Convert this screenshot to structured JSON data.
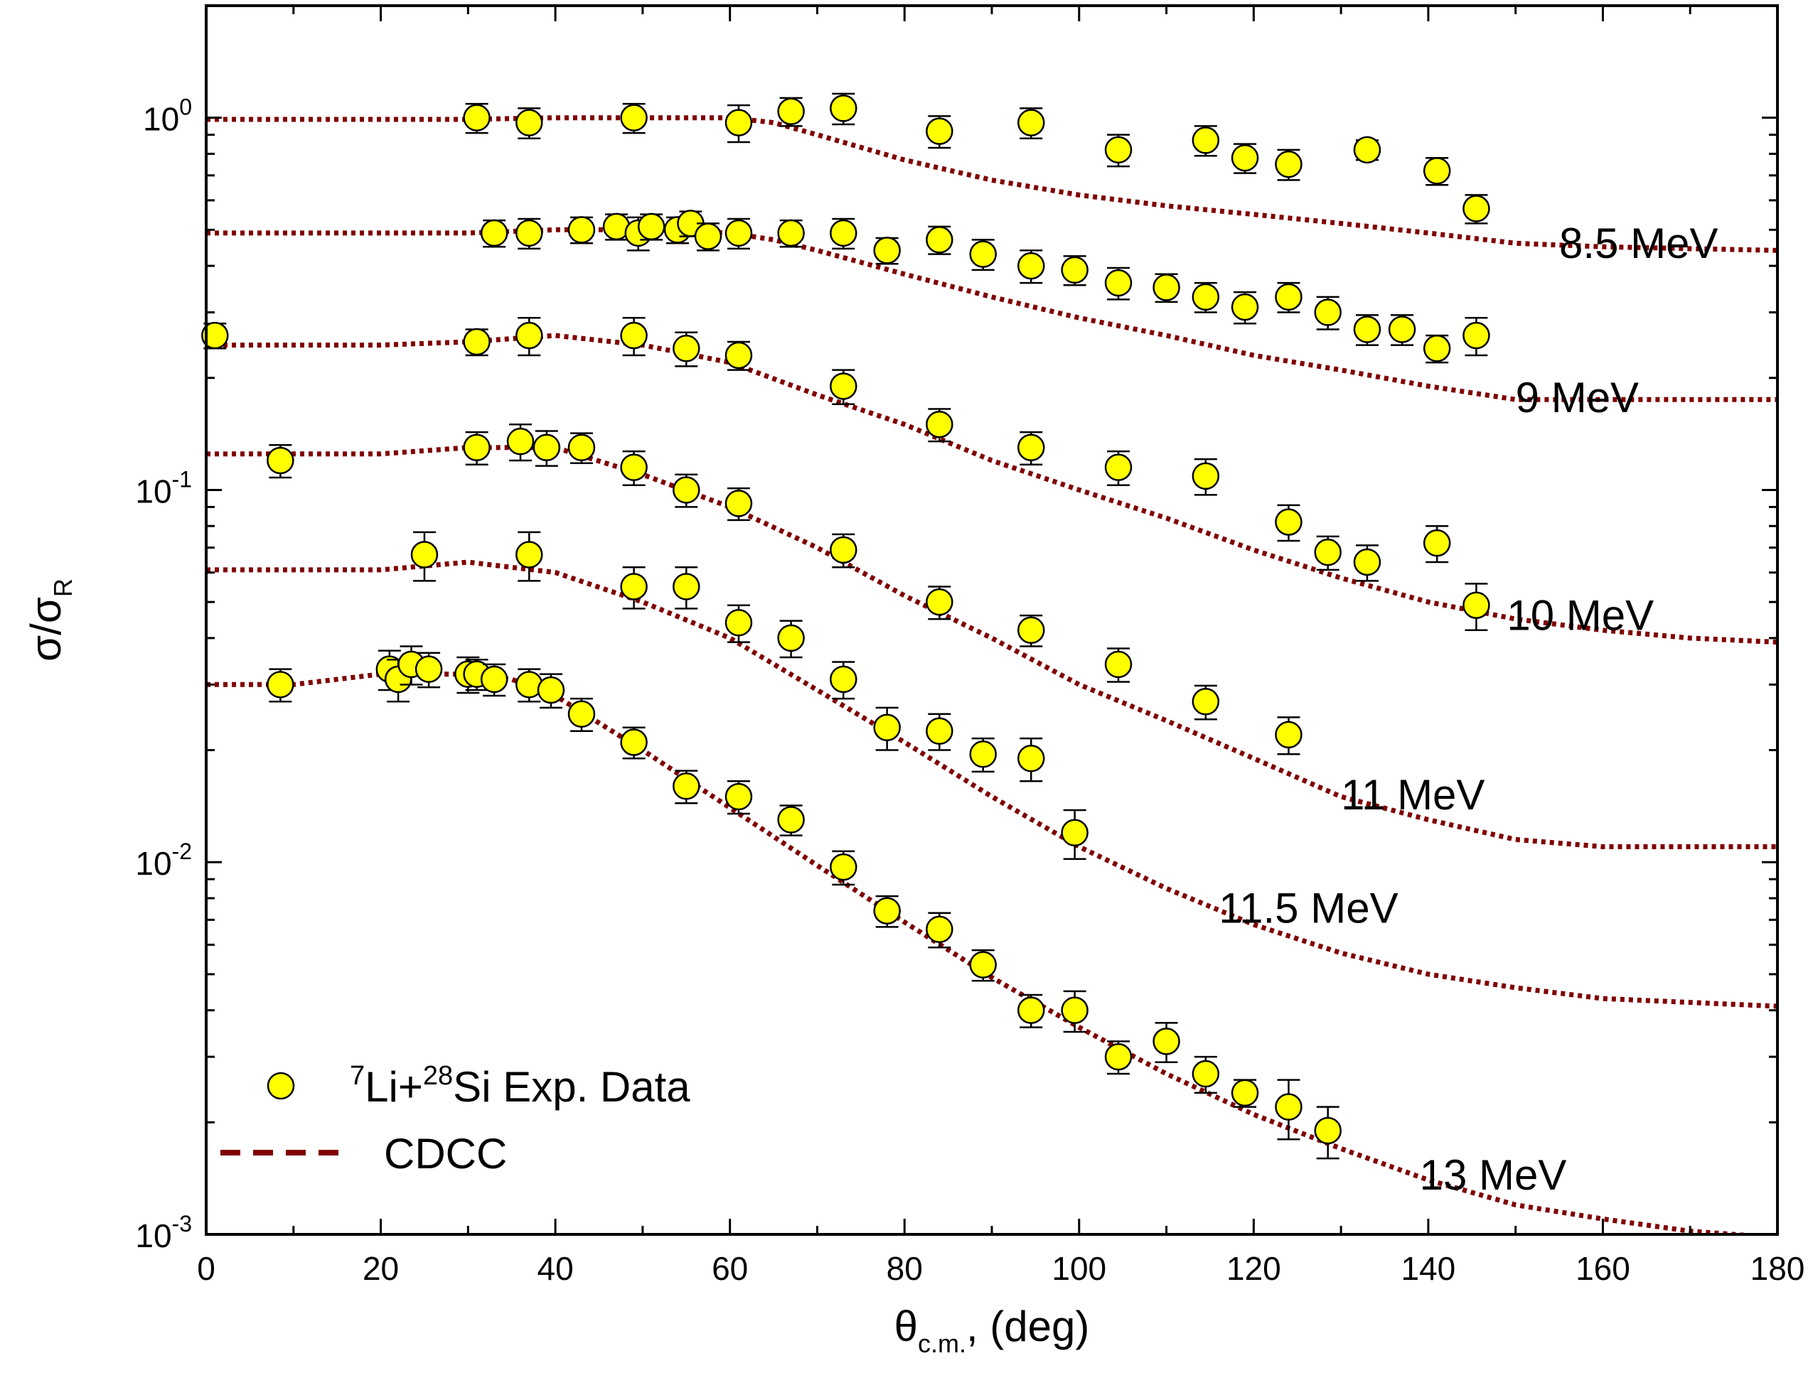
{
  "chart_data": {
    "type": "scatter",
    "xlabel": {
      "main": "θ",
      "sub": "c.m.",
      "rest": ", (deg)"
    },
    "ylabel": {
      "main": "σ/σ",
      "sub": "R"
    },
    "xlim": [
      0,
      180
    ],
    "ylim": [
      0.001,
      2
    ],
    "yscale": "log",
    "x_ticks": [
      0,
      20,
      40,
      60,
      80,
      100,
      120,
      140,
      160,
      180
    ],
    "x_tick_labels": [
      "0",
      "20",
      "40",
      "60",
      "80",
      "100",
      "120",
      "140",
      "160",
      "180"
    ],
    "y_ticks": [
      {
        "value": 1,
        "base": "10",
        "exp": "0"
      },
      {
        "value": 0.1,
        "base": "10",
        "exp": "-1"
      },
      {
        "value": 0.01,
        "base": "10",
        "exp": "-2"
      },
      {
        "value": 0.001,
        "base": "10",
        "exp": "-3"
      }
    ],
    "legend": {
      "position": "bottom-left",
      "entries": [
        {
          "type": "marker",
          "pre_sup": "7",
          "text1": "Li+",
          "mid_sup": "28",
          "text2": "Si Exp. Data"
        },
        {
          "type": "line",
          "text": "CDCC"
        }
      ]
    },
    "colors": {
      "marker_fill": "#ffff00",
      "marker_edge": "#000000",
      "cdcc_line": "#800000"
    },
    "series": [
      {
        "name": "8.5 MeV",
        "label_angle": 155,
        "data": [
          [
            31,
            1.0,
            0.09
          ],
          [
            37,
            0.97,
            0.09
          ],
          [
            49,
            1.0,
            0.09
          ],
          [
            61,
            0.97,
            0.11
          ],
          [
            67,
            1.04,
            0.09
          ],
          [
            73,
            1.06,
            0.1
          ],
          [
            84,
            0.92,
            0.09
          ],
          [
            94.5,
            0.97,
            0.09
          ],
          [
            104.5,
            0.82,
            0.08
          ],
          [
            114.5,
            0.87,
            0.08
          ],
          [
            119,
            0.78,
            0.07
          ],
          [
            124,
            0.75,
            0.07
          ],
          [
            133,
            0.82,
            0.05
          ],
          [
            141,
            0.72,
            0.06
          ],
          [
            145.5,
            0.57,
            0.05
          ]
        ],
        "cdcc": [
          [
            0,
            0.99
          ],
          [
            10,
            0.99
          ],
          [
            20,
            0.99
          ],
          [
            30,
            0.99
          ],
          [
            40,
            1.0
          ],
          [
            50,
            1.0
          ],
          [
            60,
            1.0
          ],
          [
            65,
            0.97
          ],
          [
            70,
            0.9
          ],
          [
            80,
            0.77
          ],
          [
            90,
            0.68
          ],
          [
            100,
            0.62
          ],
          [
            110,
            0.58
          ],
          [
            120,
            0.55
          ],
          [
            130,
            0.52
          ],
          [
            140,
            0.49
          ],
          [
            150,
            0.46
          ],
          [
            160,
            0.45
          ],
          [
            170,
            0.445
          ],
          [
            180,
            0.44
          ]
        ]
      },
      {
        "name": "9 MeV",
        "label_angle": 150,
        "data": [
          [
            33,
            0.49,
            0.04
          ],
          [
            37,
            0.49,
            0.045
          ],
          [
            43,
            0.5,
            0.04
          ],
          [
            47,
            0.51,
            0.04
          ],
          [
            49.5,
            0.49,
            0.05
          ],
          [
            51,
            0.51,
            0.04
          ],
          [
            54,
            0.5,
            0.04
          ],
          [
            55.5,
            0.52,
            0.04
          ],
          [
            57.5,
            0.48,
            0.04
          ],
          [
            61,
            0.49,
            0.045
          ],
          [
            67,
            0.49,
            0.04
          ],
          [
            73,
            0.49,
            0.045
          ],
          [
            78,
            0.44,
            0.035
          ],
          [
            84,
            0.47,
            0.04
          ],
          [
            89,
            0.43,
            0.04
          ],
          [
            94.5,
            0.4,
            0.04
          ],
          [
            99.5,
            0.39,
            0.035
          ],
          [
            104.5,
            0.36,
            0.035
          ],
          [
            110,
            0.35,
            0.03
          ],
          [
            114.5,
            0.33,
            0.03
          ],
          [
            119,
            0.31,
            0.03
          ],
          [
            124,
            0.33,
            0.03
          ],
          [
            128.5,
            0.3,
            0.03
          ],
          [
            133,
            0.27,
            0.025
          ],
          [
            137,
            0.27,
            0.025
          ],
          [
            141,
            0.24,
            0.02
          ],
          [
            145.5,
            0.26,
            0.03
          ]
        ],
        "cdcc": [
          [
            0,
            0.49
          ],
          [
            10,
            0.49
          ],
          [
            20,
            0.49
          ],
          [
            30,
            0.49
          ],
          [
            40,
            0.5
          ],
          [
            50,
            0.5
          ],
          [
            60,
            0.49
          ],
          [
            65,
            0.47
          ],
          [
            70,
            0.44
          ],
          [
            80,
            0.38
          ],
          [
            90,
            0.33
          ],
          [
            100,
            0.29
          ],
          [
            110,
            0.26
          ],
          [
            120,
            0.23
          ],
          [
            130,
            0.21
          ],
          [
            140,
            0.19
          ],
          [
            150,
            0.175
          ],
          [
            160,
            0.175
          ],
          [
            170,
            0.175
          ],
          [
            180,
            0.175
          ]
        ]
      },
      {
        "name": "10 MeV",
        "label_angle": 149,
        "data": [
          [
            1,
            0.26,
            0.02
          ],
          [
            31,
            0.25,
            0.02
          ],
          [
            37,
            0.26,
            0.03
          ],
          [
            49,
            0.26,
            0.03
          ],
          [
            55,
            0.24,
            0.025
          ],
          [
            61,
            0.23,
            0.02
          ],
          [
            73,
            0.19,
            0.02
          ],
          [
            84,
            0.15,
            0.015
          ],
          [
            94.5,
            0.13,
            0.013
          ],
          [
            104.5,
            0.115,
            0.012
          ],
          [
            114.5,
            0.109,
            0.012
          ],
          [
            124,
            0.082,
            0.009
          ],
          [
            128.5,
            0.068,
            0.007
          ],
          [
            133,
            0.064,
            0.007
          ],
          [
            141,
            0.072,
            0.008
          ],
          [
            145.5,
            0.049,
            0.007
          ]
        ],
        "cdcc": [
          [
            0,
            0.245
          ],
          [
            10,
            0.245
          ],
          [
            20,
            0.245
          ],
          [
            30,
            0.25
          ],
          [
            40,
            0.26
          ],
          [
            50,
            0.245
          ],
          [
            60,
            0.22
          ],
          [
            70,
            0.18
          ],
          [
            80,
            0.15
          ],
          [
            90,
            0.12
          ],
          [
            100,
            0.1
          ],
          [
            110,
            0.084
          ],
          [
            120,
            0.069
          ],
          [
            130,
            0.058
          ],
          [
            140,
            0.05
          ],
          [
            150,
            0.045
          ],
          [
            160,
            0.042
          ],
          [
            170,
            0.04
          ],
          [
            180,
            0.039
          ]
        ]
      },
      {
        "name": "11 MeV",
        "label_angle": 130,
        "data": [
          [
            8.5,
            0.12,
            0.012
          ],
          [
            31,
            0.13,
            0.013
          ],
          [
            36,
            0.135,
            0.015
          ],
          [
            39,
            0.13,
            0.014
          ],
          [
            43,
            0.13,
            0.012
          ],
          [
            49,
            0.115,
            0.012
          ],
          [
            55,
            0.1,
            0.01
          ],
          [
            61,
            0.092,
            0.009
          ],
          [
            73,
            0.069,
            0.007
          ],
          [
            84,
            0.05,
            0.005
          ],
          [
            94.5,
            0.042,
            0.004
          ],
          [
            104.5,
            0.034,
            0.0035
          ],
          [
            114.5,
            0.027,
            0.0028
          ],
          [
            124,
            0.022,
            0.0025
          ]
        ],
        "cdcc": [
          [
            0,
            0.125
          ],
          [
            10,
            0.125
          ],
          [
            20,
            0.125
          ],
          [
            30,
            0.13
          ],
          [
            40,
            0.13
          ],
          [
            50,
            0.11
          ],
          [
            60,
            0.09
          ],
          [
            70,
            0.07
          ],
          [
            80,
            0.052
          ],
          [
            90,
            0.04
          ],
          [
            100,
            0.03
          ],
          [
            110,
            0.024
          ],
          [
            120,
            0.019
          ],
          [
            130,
            0.015
          ],
          [
            140,
            0.013
          ],
          [
            150,
            0.0115
          ],
          [
            160,
            0.011
          ],
          [
            170,
            0.011
          ],
          [
            180,
            0.011
          ]
        ]
      },
      {
        "name": "11.5 MeV",
        "label_angle": 116,
        "data": [
          [
            25,
            0.067,
            0.01
          ],
          [
            37,
            0.067,
            0.01
          ],
          [
            49,
            0.055,
            0.007
          ],
          [
            55,
            0.055,
            0.007
          ],
          [
            61,
            0.044,
            0.005
          ],
          [
            67,
            0.04,
            0.0045
          ],
          [
            73,
            0.031,
            0.0035
          ],
          [
            78,
            0.023,
            0.003
          ],
          [
            84,
            0.0225,
            0.0025
          ],
          [
            89,
            0.0195,
            0.002
          ],
          [
            94.5,
            0.019,
            0.0025
          ],
          [
            99.5,
            0.012,
            0.0018
          ]
        ],
        "cdcc": [
          [
            0,
            0.061
          ],
          [
            10,
            0.061
          ],
          [
            20,
            0.061
          ],
          [
            30,
            0.064
          ],
          [
            40,
            0.06
          ],
          [
            50,
            0.05
          ],
          [
            60,
            0.04
          ],
          [
            70,
            0.029
          ],
          [
            80,
            0.021
          ],
          [
            90,
            0.015
          ],
          [
            100,
            0.011
          ],
          [
            110,
            0.0085
          ],
          [
            120,
            0.0068
          ],
          [
            130,
            0.0057
          ],
          [
            140,
            0.005
          ],
          [
            150,
            0.0046
          ],
          [
            160,
            0.0043
          ],
          [
            170,
            0.0042
          ],
          [
            180,
            0.0041
          ]
        ]
      },
      {
        "name": "13 MeV",
        "label_angle": 139,
        "data": [
          [
            8.5,
            0.03,
            0.003
          ],
          [
            21,
            0.033,
            0.004
          ],
          [
            22,
            0.031,
            0.004
          ],
          [
            23.5,
            0.034,
            0.004
          ],
          [
            25.5,
            0.033,
            0.0035
          ],
          [
            30,
            0.032,
            0.0035
          ],
          [
            31,
            0.032,
            0.003
          ],
          [
            33,
            0.031,
            0.003
          ],
          [
            37,
            0.03,
            0.003
          ],
          [
            39.5,
            0.029,
            0.003
          ],
          [
            43,
            0.025,
            0.0025
          ],
          [
            49,
            0.021,
            0.002
          ],
          [
            55,
            0.016,
            0.0016
          ],
          [
            61,
            0.015,
            0.0015
          ],
          [
            67,
            0.013,
            0.0012
          ],
          [
            73,
            0.0097,
            0.001
          ],
          [
            78,
            0.0074,
            0.0007
          ],
          [
            84,
            0.0066,
            0.0007
          ],
          [
            89,
            0.0053,
            0.0005
          ],
          [
            94.5,
            0.004,
            0.0004
          ],
          [
            99.5,
            0.004,
            0.0005
          ],
          [
            104.5,
            0.003,
            0.0003
          ],
          [
            110,
            0.0033,
            0.0004
          ],
          [
            114.5,
            0.0027,
            0.0003
          ],
          [
            119,
            0.0024,
            0.0002
          ],
          [
            124,
            0.0022,
            0.0004
          ],
          [
            128.5,
            0.0019,
            0.0003
          ]
        ],
        "cdcc": [
          [
            0,
            0.03
          ],
          [
            10,
            0.03
          ],
          [
            20,
            0.032
          ],
          [
            30,
            0.032
          ],
          [
            35,
            0.031
          ],
          [
            40,
            0.028
          ],
          [
            50,
            0.02
          ],
          [
            60,
            0.014
          ],
          [
            70,
            0.0098
          ],
          [
            80,
            0.0069
          ],
          [
            90,
            0.0049
          ],
          [
            100,
            0.0036
          ],
          [
            110,
            0.0027
          ],
          [
            120,
            0.0021
          ],
          [
            130,
            0.0017
          ],
          [
            140,
            0.0014
          ],
          [
            150,
            0.0012
          ],
          [
            160,
            0.0011
          ],
          [
            170,
            0.00102
          ],
          [
            180,
            0.00098
          ]
        ]
      }
    ]
  }
}
